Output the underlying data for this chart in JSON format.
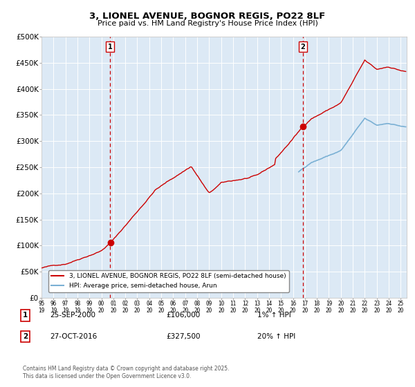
{
  "title": "3, LIONEL AVENUE, BOGNOR REGIS, PO22 8LF",
  "subtitle": "Price paid vs. HM Land Registry's House Price Index (HPI)",
  "legend_line1": "3, LIONEL AVENUE, BOGNOR REGIS, PO22 8LF (semi-detached house)",
  "legend_line2": "HPI: Average price, semi-detached house, Arun",
  "annotation1_label": "1",
  "annotation1_date": "25-SEP-2000",
  "annotation1_price": "£106,000",
  "annotation1_hpi": "1% ↑ HPI",
  "annotation1_year": 2000.73,
  "annotation1_value": 106000,
  "annotation2_label": "2",
  "annotation2_date": "27-OCT-2016",
  "annotation2_price": "£327,500",
  "annotation2_hpi": "20% ↑ HPI",
  "annotation2_year": 2016.82,
  "annotation2_value": 327500,
  "red_color": "#cc0000",
  "blue_color": "#7ab0d4",
  "bg_color": "#dce9f5",
  "grid_color": "#ffffff",
  "dashed_line_color": "#cc0000",
  "ylim_min": 0,
  "ylim_max": 500000,
  "ytick_values": [
    0,
    50000,
    100000,
    150000,
    200000,
    250000,
    300000,
    350000,
    400000,
    450000,
    500000
  ],
  "ytick_labels": [
    "£0",
    "£50K",
    "£100K",
    "£150K",
    "£200K",
    "£250K",
    "£300K",
    "£350K",
    "£400K",
    "£450K",
    "£500K"
  ],
  "copyright_text": "Contains HM Land Registry data © Crown copyright and database right 2025.\nThis data is licensed under the Open Government Licence v3.0.",
  "xlim_min": 1995.0,
  "xlim_max": 2025.5,
  "hpi_start_year": 2016.5,
  "sale1_year": 2000.73,
  "sale1_value": 106000,
  "sale2_year": 2016.82,
  "sale2_value": 327500
}
